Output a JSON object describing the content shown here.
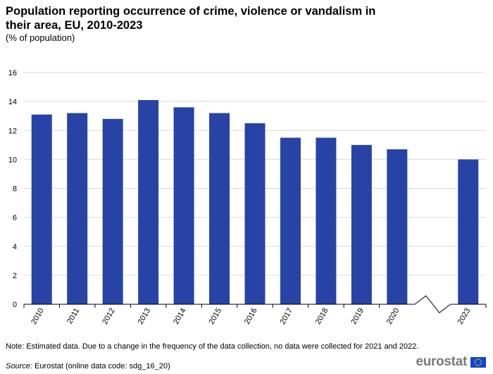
{
  "title": "Population reporting occurrence of crime, violence or vandalism in their area, EU, 2010-2023",
  "subtitle": "(% of population)",
  "note": "Note: Estimated data. Due to a change in the frequency of the data collection, no data were collected for 2021 and 2022.",
  "source": {
    "label": "Source:",
    "text": " Eurostat (online data code: sdg_16_20)"
  },
  "logo": {
    "text": "eurostat"
  },
  "colors": {
    "bar": "#2743a6",
    "grid": "#d9d9d9",
    "axis": "#000000",
    "flag_blue": "#0e47cb",
    "flag_star": "#ffcc00"
  },
  "chart_data": {
    "type": "bar",
    "categories": [
      "2010",
      "2011",
      "2012",
      "2013",
      "2014",
      "2015",
      "2016",
      "2017",
      "2018",
      "2019",
      "2020",
      "",
      "2023"
    ],
    "values": [
      13.1,
      13.2,
      12.8,
      14.1,
      13.6,
      13.2,
      12.5,
      11.5,
      11.5,
      11.0,
      10.7,
      null,
      10.0
    ],
    "axis_break_between": [
      "2020",
      "2023"
    ],
    "ylim": [
      0,
      16
    ],
    "yticks": [
      0,
      2,
      4,
      6,
      8,
      10,
      12,
      14,
      16
    ],
    "grid": true,
    "legend": "none"
  }
}
